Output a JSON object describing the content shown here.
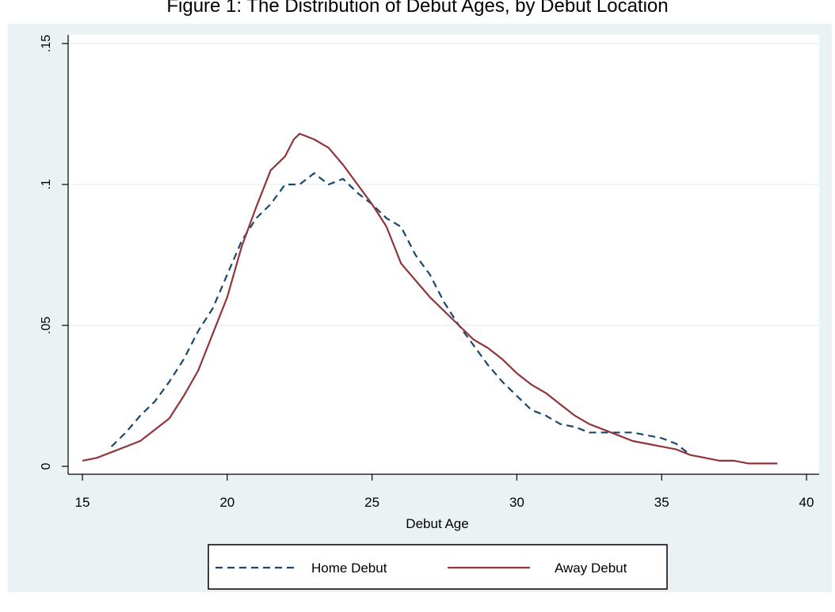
{
  "title": "Figure 1: The Distribution of Debut Ages, by Debut Location",
  "colors": {
    "graph_background": "#eaf2f3",
    "plot_background": "#ffffff",
    "grid": "#eaf2f3",
    "home_line": "#1a476f",
    "away_line": "#90353b",
    "axis": "#000000"
  },
  "chart_data": {
    "type": "line",
    "title": "Figure 1: The Distribution of Debut Ages, by Debut Location",
    "xlabel": "Debut Age",
    "ylabel": "",
    "xlim": [
      15,
      40
    ],
    "ylim": [
      0,
      0.15
    ],
    "x_ticks": [
      15,
      20,
      25,
      30,
      35,
      40
    ],
    "x_tick_labels": [
      "15",
      "20",
      "25",
      "30",
      "35",
      "40"
    ],
    "y_ticks": [
      0,
      0.05,
      0.1,
      0.15
    ],
    "y_tick_labels": [
      "0",
      ".05",
      ".1",
      ".15"
    ],
    "grid": true,
    "legend_position": "bottom",
    "series": [
      {
        "name": "Home Debut",
        "style": "dashed",
        "color": "#1a476f",
        "x": [
          16,
          16.5,
          17,
          17.5,
          18,
          18.5,
          19,
          19.5,
          20,
          20.5,
          21,
          21.5,
          22,
          22.5,
          23,
          23.5,
          24,
          24.5,
          25,
          25.5,
          26,
          26.5,
          27,
          27.5,
          28,
          28.5,
          29,
          29.5,
          30,
          30.5,
          31,
          31.5,
          32,
          32.5,
          33,
          33.5,
          34,
          34.5,
          35,
          35.5,
          36
        ],
        "y": [
          0.007,
          0.012,
          0.018,
          0.023,
          0.03,
          0.038,
          0.048,
          0.056,
          0.068,
          0.08,
          0.088,
          0.093,
          0.1,
          0.1,
          0.104,
          0.1,
          0.102,
          0.097,
          0.093,
          0.088,
          0.085,
          0.075,
          0.068,
          0.058,
          0.05,
          0.043,
          0.036,
          0.03,
          0.025,
          0.02,
          0.018,
          0.015,
          0.014,
          0.012,
          0.012,
          0.012,
          0.012,
          0.011,
          0.01,
          0.008,
          0.004
        ]
      },
      {
        "name": "Away Debut",
        "style": "solid",
        "color": "#90353b",
        "x": [
          15,
          15.5,
          16,
          16.5,
          17,
          17.5,
          18,
          18.5,
          19,
          19.5,
          20,
          20.5,
          21,
          21.5,
          22,
          22.3,
          22.5,
          23,
          23.5,
          24,
          24.5,
          25,
          25.5,
          26,
          26.5,
          27,
          27.5,
          28,
          28.5,
          29,
          29.5,
          30,
          30.5,
          31,
          31.5,
          32,
          32.5,
          33,
          33.5,
          34,
          34.5,
          35,
          35.5,
          36,
          36.5,
          37,
          37.5,
          38,
          38.5,
          39
        ],
        "y": [
          0.002,
          0.003,
          0.005,
          0.007,
          0.009,
          0.013,
          0.017,
          0.025,
          0.034,
          0.047,
          0.06,
          0.078,
          0.092,
          0.105,
          0.11,
          0.116,
          0.118,
          0.116,
          0.113,
          0.107,
          0.1,
          0.093,
          0.085,
          0.072,
          0.066,
          0.06,
          0.055,
          0.05,
          0.045,
          0.042,
          0.038,
          0.033,
          0.029,
          0.026,
          0.022,
          0.018,
          0.015,
          0.013,
          0.011,
          0.009,
          0.008,
          0.007,
          0.006,
          0.004,
          0.003,
          0.002,
          0.002,
          0.001,
          0.001,
          0.001
        ]
      }
    ]
  }
}
